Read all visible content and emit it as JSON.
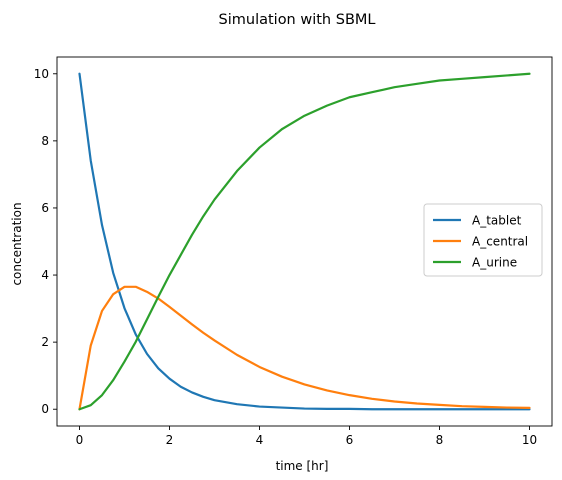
{
  "chart_data": {
    "type": "line",
    "title": "Simulation with SBML",
    "xlabel": "time [hr]",
    "ylabel": "concentration",
    "xlim": [
      -0.5,
      10.5
    ],
    "ylim": [
      -0.5,
      10.5
    ],
    "xticks": [
      0,
      2,
      4,
      6,
      8,
      10
    ],
    "yticks": [
      0,
      2,
      4,
      6,
      8,
      10
    ],
    "grid": false,
    "legend_position": "center-right",
    "x": [
      0,
      0.25,
      0.5,
      0.75,
      1,
      1.25,
      1.5,
      1.75,
      2,
      2.25,
      2.5,
      2.75,
      3,
      3.5,
      4,
      4.5,
      5,
      5.5,
      6,
      6.5,
      7,
      7.5,
      8,
      8.5,
      9,
      9.5,
      10
    ],
    "series": [
      {
        "name": "A_tablet",
        "color": "#1f77b4",
        "values": [
          10,
          7.41,
          5.49,
          4.06,
          3.01,
          2.23,
          1.65,
          1.22,
          0.91,
          0.67,
          0.5,
          0.37,
          0.27,
          0.15,
          0.08,
          0.05,
          0.02,
          0.01,
          0.01,
          0,
          0,
          0,
          0,
          0,
          0,
          0,
          0
        ]
      },
      {
        "name": "A_central",
        "color": "#ff7f0e",
        "values": [
          0,
          1.9,
          2.93,
          3.43,
          3.65,
          3.65,
          3.5,
          3.3,
          3.05,
          2.79,
          2.53,
          2.28,
          2.05,
          1.62,
          1.26,
          0.97,
          0.74,
          0.56,
          0.42,
          0.31,
          0.23,
          0.17,
          0.13,
          0.09,
          0.07,
          0.05,
          0.04
        ]
      },
      {
        "name": "A_urine",
        "color": "#2ca02c",
        "values": [
          0,
          0.12,
          0.42,
          0.87,
          1.42,
          2.01,
          2.68,
          3.35,
          4.0,
          4.6,
          5.2,
          5.75,
          6.25,
          7.1,
          7.8,
          8.35,
          8.75,
          9.05,
          9.3,
          9.45,
          9.6,
          9.7,
          9.8,
          9.85,
          9.9,
          9.95,
          10.0
        ]
      }
    ]
  }
}
